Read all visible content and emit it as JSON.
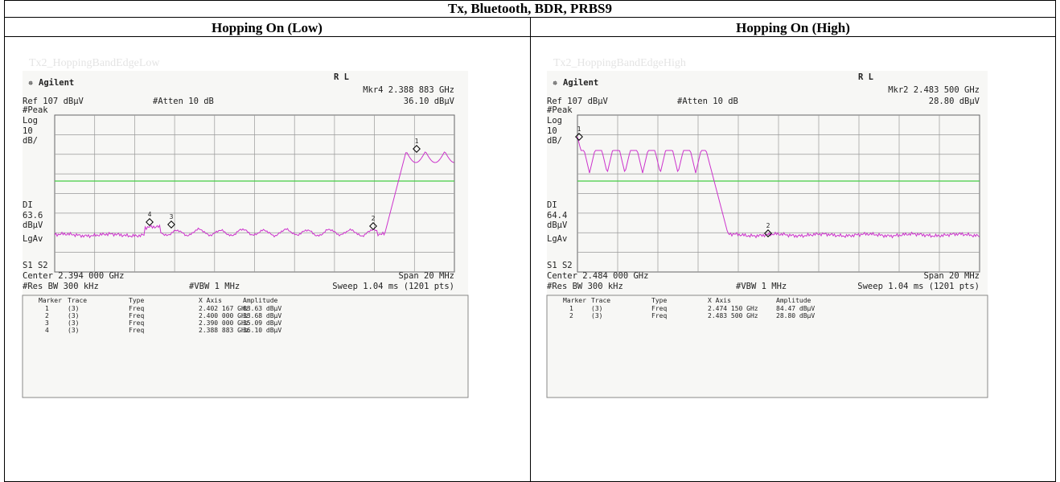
{
  "table": {
    "title": "Tx, Bluetooth, BDR, PRBS9",
    "columns": [
      "Hopping On (Low)",
      "Hopping On (High)"
    ]
  },
  "panels": [
    {
      "caption": "Tx2_HoppingBandEdgeLow",
      "brand": "Agilent",
      "mode": "R L",
      "marker_readout": "Mkr4  2.388 883 GHz",
      "ref": "Ref 107 dBµV",
      "atten": "#Atten 10 dB",
      "marker_amp": "36.10 dBµV",
      "left_labels": [
        "#Peak",
        "Log",
        "10",
        "dB/"
      ],
      "dl": [
        "DI",
        "63.6",
        "dBµV"
      ],
      "lgav": "LgAv",
      "s1s2": "S1  S2",
      "center": "Center 2.394 000 GHz",
      "span": "Span 20 MHz",
      "res_bw": "#Res BW 300 kHz",
      "vbw": "#VBW 1 MHz",
      "sweep": "Sweep 1.04 ms (1201 pts)",
      "marker_labels": [
        "1",
        "2",
        "3",
        "4"
      ],
      "marker_table": {
        "headers": [
          "Marker",
          "Trace",
          "Type",
          "X Axis",
          "Amplitude"
        ],
        "rows": [
          [
            "1",
            "(3)",
            "Freq",
            "2.402 167 GHz",
            "83.63 dBµV"
          ],
          [
            "2",
            "(3)",
            "Freq",
            "2.400 000 GHz",
            "33.68 dBµV"
          ],
          [
            "3",
            "(3)",
            "Freq",
            "2.390 000 GHz",
            "35.09 dBµV"
          ],
          [
            "4",
            "(3)",
            "Freq",
            "2.388 883 GHz",
            "36.10 dBµV"
          ]
        ]
      }
    },
    {
      "caption": "Tx2_HoppingBandEdgeHigh",
      "brand": "Agilent",
      "mode": "R L",
      "marker_readout": "Mkr2  2.483 500 GHz",
      "ref": "Ref 107 dBµV",
      "atten": "#Atten 10 dB",
      "marker_amp": "28.80 dBµV",
      "left_labels": [
        "#Peak",
        "Log",
        "10",
        "dB/"
      ],
      "dl": [
        "DI",
        "64.4",
        "dBµV"
      ],
      "lgav": "LgAv",
      "s1s2": "S1  S2",
      "center": "Center 2.484 000 GHz",
      "span": "Span 20 MHz",
      "res_bw": "#Res BW 300 kHz",
      "vbw": "#VBW 1 MHz",
      "sweep": "Sweep 1.04 ms (1201 pts)",
      "marker_labels": [
        "1",
        "2"
      ],
      "marker_table": {
        "headers": [
          "Marker",
          "Trace",
          "Type",
          "X Axis",
          "Amplitude"
        ],
        "rows": [
          [
            "1",
            "(3)",
            "Freq",
            "2.474 150 GHz",
            "84.47 dBµV"
          ],
          [
            "2",
            "(3)",
            "Freq",
            "2.483 500 GHz",
            "28.80 dBµV"
          ]
        ]
      }
    }
  ]
}
